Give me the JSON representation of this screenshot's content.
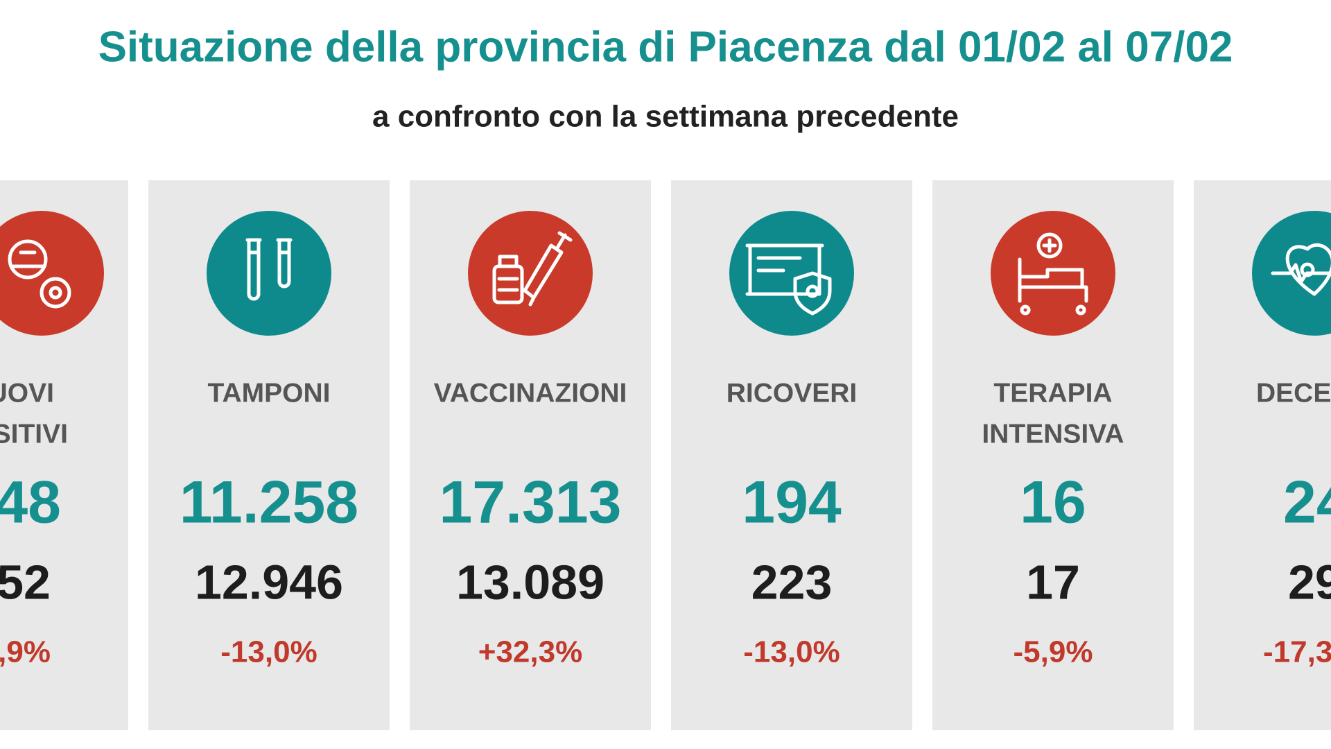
{
  "header": {
    "title": "Situazione della provincia di Piacenza dal 01/02 al 07/02",
    "subtitle": "a confronto con la settimana precedente"
  },
  "cards": [
    {
      "label": [
        "UOVI",
        "SITIVI"
      ],
      "current": "48",
      "previous": "52",
      "change": ",9%"
    },
    {
      "label": [
        "TAMPONI"
      ],
      "current": "11.258",
      "previous": "12.946",
      "change": "-13,0%"
    },
    {
      "label": [
        "VACCINAZIONI"
      ],
      "current": "17.313",
      "previous": "13.089",
      "change": "+32,3%"
    },
    {
      "label": [
        "RICOVERI"
      ],
      "current": "194",
      "previous": "223",
      "change": "-13,0%"
    },
    {
      "label": [
        "TERAPIA",
        "INTENSIVA"
      ],
      "current": "16",
      "previous": "17",
      "change": "-5,9%"
    },
    {
      "label": [
        "DECE"
      ],
      "current": "24",
      "previous": "29",
      "change": "-17,3"
    }
  ]
}
